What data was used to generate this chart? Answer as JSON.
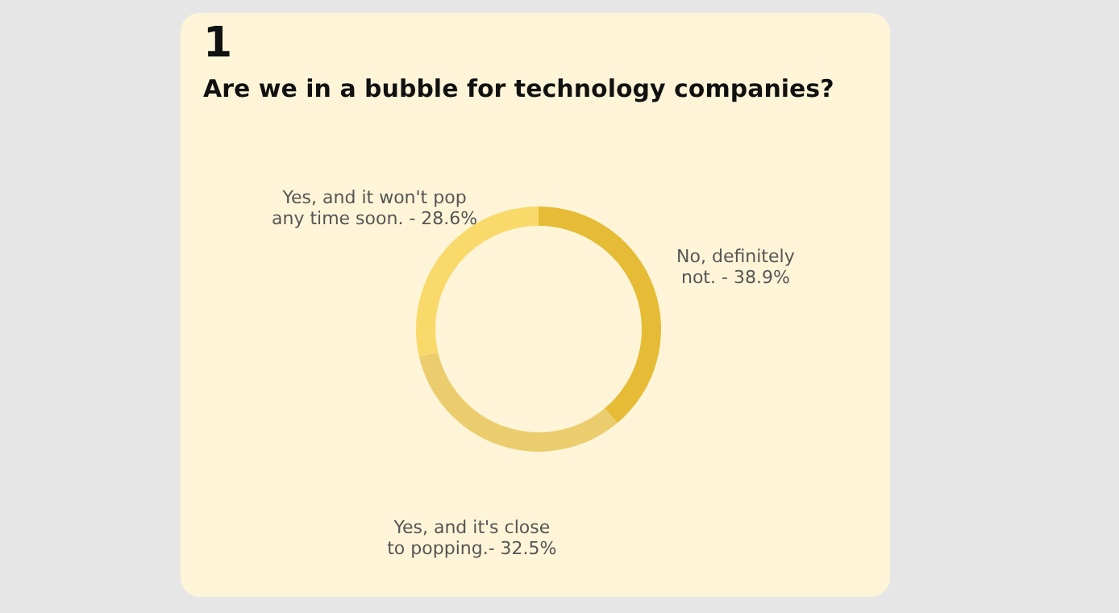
{
  "chart_data": {
    "type": "donut",
    "title": "Are we in a bubble for technology companies?",
    "annotations": [
      "1"
    ],
    "categories": [
      "No, definitely not. - 38.9%",
      "Yes, and it's close to popping.- 32.5%",
      "Yes, and it won't pop any time soon. - 28.6%"
    ],
    "values": [
      38.9,
      32.5,
      28.6
    ],
    "colors": [
      "#e6bb35",
      "#eccd6e",
      "#fad96b"
    ],
    "legend": false
  }
}
